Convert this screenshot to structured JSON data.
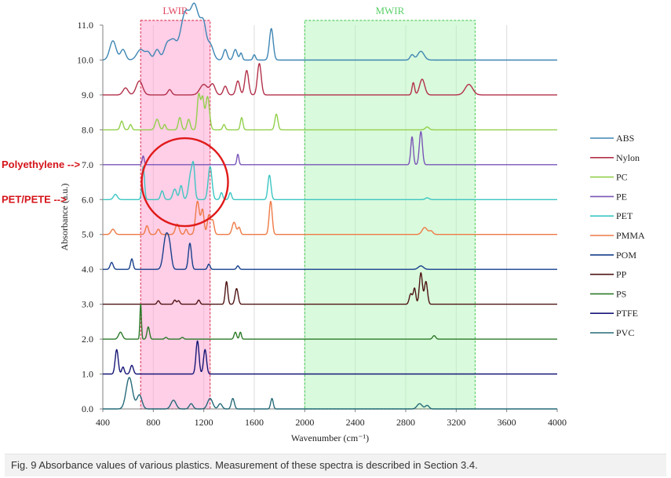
{
  "chart_data": {
    "type": "line",
    "title": "",
    "xlabel": "Wavenumber (cm⁻¹)",
    "ylabel": "Absorbance (a.u.)",
    "xlim": [
      400,
      4000
    ],
    "ylim": [
      0,
      11
    ],
    "x_ticks": [
      400,
      800,
      1200,
      1600,
      2000,
      2400,
      2800,
      3200,
      3600,
      4000
    ],
    "y_ticks": [
      "0.0",
      "1.0",
      "2.0",
      "3.0",
      "4.0",
      "5.0",
      "6.0",
      "7.0",
      "8.0",
      "9.0",
      "10.0",
      "11.0"
    ],
    "grid": "vertical",
    "legend_position": "right",
    "regions": [
      {
        "name": "LWIR",
        "x_range": [
          700,
          1250
        ],
        "color": "#ff9ed0",
        "border": "#e0455f",
        "label_color": "#e0455f"
      },
      {
        "name": "MWIR",
        "x_range": [
          2000,
          3350
        ],
        "color": "#b4f5ba",
        "border": "#5cd06a",
        "label_color": "#5cd06a"
      }
    ],
    "series": [
      {
        "name": "ABS",
        "color": "#3e86b4",
        "baseline": 10.0,
        "peaks": [
          [
            480,
            0.55,
            25
          ],
          [
            560,
            0.3,
            20
          ],
          [
            700,
            0.3,
            30
          ],
          [
            760,
            0.2,
            20
          ],
          [
            830,
            0.3,
            20
          ],
          [
            910,
            0.45,
            25
          ],
          [
            960,
            0.5,
            25
          ],
          [
            1030,
            0.7,
            30
          ],
          [
            1070,
            1.0,
            30
          ],
          [
            1120,
            1.0,
            25
          ],
          [
            1160,
            0.9,
            30
          ],
          [
            1200,
            0.7,
            20
          ],
          [
            1250,
            0.45,
            25
          ],
          [
            1370,
            0.3,
            15
          ],
          [
            1450,
            0.3,
            15
          ],
          [
            1495,
            0.2,
            10
          ],
          [
            1600,
            0.15,
            10
          ],
          [
            1735,
            0.9,
            15
          ],
          [
            2850,
            0.15,
            15
          ],
          [
            2920,
            0.25,
            25
          ]
        ]
      },
      {
        "name": "Nylon",
        "color": "#b3304a",
        "baseline": 9.0,
        "peaks": [
          [
            580,
            0.2,
            20
          ],
          [
            690,
            0.4,
            25
          ],
          [
            930,
            0.15,
            15
          ],
          [
            1200,
            0.3,
            30
          ],
          [
            1270,
            0.3,
            20
          ],
          [
            1370,
            0.25,
            15
          ],
          [
            1470,
            0.4,
            15
          ],
          [
            1540,
            0.7,
            15
          ],
          [
            1640,
            0.9,
            15
          ],
          [
            2860,
            0.35,
            10
          ],
          [
            2930,
            0.45,
            20
          ],
          [
            3300,
            0.3,
            30
          ]
        ]
      },
      {
        "name": "PC",
        "color": "#92d04a",
        "baseline": 8.0,
        "peaks": [
          [
            550,
            0.25,
            12
          ],
          [
            620,
            0.15,
            10
          ],
          [
            830,
            0.3,
            15
          ],
          [
            890,
            0.15,
            10
          ],
          [
            1010,
            0.35,
            12
          ],
          [
            1080,
            0.3,
            12
          ],
          [
            1160,
            1.0,
            12
          ],
          [
            1190,
            0.9,
            12
          ],
          [
            1230,
            0.95,
            15
          ],
          [
            1360,
            0.15,
            10
          ],
          [
            1500,
            0.35,
            10
          ],
          [
            1775,
            0.45,
            12
          ],
          [
            2970,
            0.08,
            15
          ]
        ]
      },
      {
        "name": "PE",
        "color": "#7a55b8",
        "baseline": 7.0,
        "peaks": [
          [
            720,
            0.25,
            8
          ],
          [
            1470,
            0.3,
            8
          ],
          [
            2850,
            0.8,
            10
          ],
          [
            2920,
            0.95,
            12
          ]
        ]
      },
      {
        "name": "PET",
        "color": "#3cc6c2",
        "baseline": 6.0,
        "peaks": [
          [
            500,
            0.15,
            15
          ],
          [
            720,
            0.95,
            10
          ],
          [
            870,
            0.25,
            12
          ],
          [
            970,
            0.3,
            15
          ],
          [
            1020,
            0.4,
            12
          ],
          [
            1100,
            0.8,
            18
          ],
          [
            1120,
            0.6,
            10
          ],
          [
            1250,
            0.95,
            15
          ],
          [
            1340,
            0.2,
            10
          ],
          [
            1410,
            0.2,
            10
          ],
          [
            1720,
            0.7,
            12
          ],
          [
            2970,
            0.05,
            15
          ]
        ]
      },
      {
        "name": "PMMA",
        "color": "#ee7a45",
        "baseline": 5.0,
        "peaks": [
          [
            480,
            0.15,
            15
          ],
          [
            750,
            0.25,
            12
          ],
          [
            840,
            0.15,
            12
          ],
          [
            990,
            0.3,
            15
          ],
          [
            1060,
            0.15,
            10
          ],
          [
            1150,
            0.95,
            15
          ],
          [
            1190,
            0.7,
            12
          ],
          [
            1240,
            0.55,
            12
          ],
          [
            1270,
            0.4,
            12
          ],
          [
            1440,
            0.35,
            15
          ],
          [
            1480,
            0.2,
            10
          ],
          [
            1730,
            0.95,
            12
          ],
          [
            2950,
            0.2,
            20
          ],
          [
            3000,
            0.1,
            15
          ]
        ]
      },
      {
        "name": "POM",
        "color": "#163f8c",
        "baseline": 4.0,
        "peaks": [
          [
            470,
            0.2,
            12
          ],
          [
            630,
            0.3,
            10
          ],
          [
            900,
            0.95,
            20
          ],
          [
            930,
            0.5,
            15
          ],
          [
            1090,
            0.75,
            12
          ],
          [
            1240,
            0.15,
            10
          ],
          [
            1470,
            0.1,
            10
          ],
          [
            2920,
            0.1,
            20
          ]
        ]
      },
      {
        "name": "PP",
        "color": "#4e1414",
        "baseline": 3.0,
        "peaks": [
          [
            840,
            0.1,
            10
          ],
          [
            970,
            0.12,
            10
          ],
          [
            1000,
            0.1,
            10
          ],
          [
            1160,
            0.12,
            10
          ],
          [
            1380,
            0.65,
            10
          ],
          [
            1460,
            0.45,
            12
          ],
          [
            2840,
            0.3,
            12
          ],
          [
            2870,
            0.45,
            10
          ],
          [
            2920,
            0.9,
            12
          ],
          [
            2960,
            0.65,
            12
          ]
        ]
      },
      {
        "name": "PS",
        "color": "#2c7a28",
        "baseline": 2.0,
        "peaks": [
          [
            540,
            0.2,
            15
          ],
          [
            700,
            1.0,
            6
          ],
          [
            760,
            0.35,
            10
          ],
          [
            900,
            0.05,
            10
          ],
          [
            1030,
            0.05,
            10
          ],
          [
            1450,
            0.2,
            10
          ],
          [
            1490,
            0.2,
            8
          ],
          [
            3025,
            0.1,
            12
          ]
        ]
      },
      {
        "name": "PTFE",
        "color": "#161676",
        "baseline": 1.0,
        "peaks": [
          [
            510,
            0.7,
            12
          ],
          [
            560,
            0.2,
            10
          ],
          [
            630,
            0.25,
            12
          ],
          [
            1150,
            0.95,
            12
          ],
          [
            1210,
            0.7,
            12
          ]
        ]
      },
      {
        "name": "PVC",
        "color": "#256a78",
        "baseline": 0.0,
        "peaks": [
          [
            610,
            0.9,
            25
          ],
          [
            690,
            0.4,
            20
          ],
          [
            960,
            0.25,
            20
          ],
          [
            1100,
            0.15,
            15
          ],
          [
            1250,
            0.3,
            20
          ],
          [
            1330,
            0.15,
            15
          ],
          [
            1430,
            0.3,
            12
          ],
          [
            1740,
            0.3,
            10
          ],
          [
            2910,
            0.15,
            20
          ],
          [
            2970,
            0.1,
            15
          ]
        ]
      }
    ],
    "annotations": [
      {
        "text": "Polyethylene -->",
        "series": "PE"
      },
      {
        "text": "PET/PETE -->",
        "series": "PET"
      }
    ]
  },
  "caption": "Fig. 9 Absorbance values of various plastics. Measurement of these spectra is described in Section 3.4.",
  "colors": {
    "highlight_circle": "#e01a1a",
    "axis": "#7f7f7f",
    "gridline": "#dcdcdc"
  }
}
